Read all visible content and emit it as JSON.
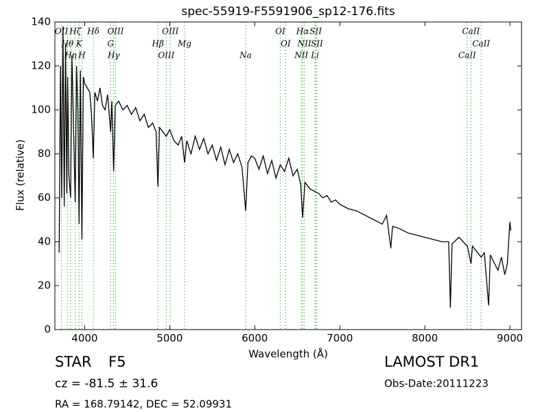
{
  "chart_data": {
    "type": "line",
    "title": "spec-55919-F5591906_sp12-176.fits",
    "xlabel": "Wavelength (Å)",
    "ylabel": "Flux (relative)",
    "color": "#000000",
    "line_color": "#55bb55",
    "xlim": [
      3650,
      9137
    ],
    "ylim": [
      0,
      140
    ],
    "xticks": [
      4000,
      5000,
      6000,
      7000,
      8000,
      9000
    ],
    "yticks": [
      0,
      20,
      40,
      60,
      80,
      100,
      120,
      140
    ],
    "x": [
      3700,
      3715,
      3730,
      3745,
      3760,
      3775,
      3790,
      3800,
      3815,
      3835,
      3850,
      3870,
      3889,
      3905,
      3920,
      3934,
      3950,
      3968,
      3985,
      4000,
      4030,
      4060,
      4080,
      4102,
      4120,
      4150,
      4180,
      4210,
      4240,
      4270,
      4305,
      4320,
      4341,
      4360,
      4400,
      4450,
      4500,
      4550,
      4600,
      4650,
      4700,
      4750,
      4800,
      4840,
      4861,
      4880,
      4920,
      4960,
      5000,
      5050,
      5100,
      5140,
      5175,
      5200,
      5250,
      5300,
      5350,
      5400,
      5450,
      5500,
      5550,
      5600,
      5650,
      5700,
      5750,
      5800,
      5850,
      5893,
      5920,
      5960,
      6000,
      6050,
      6100,
      6150,
      6200,
      6250,
      6300,
      6350,
      6400,
      6450,
      6500,
      6540,
      6563,
      6590,
      6650,
      6700,
      6750,
      6800,
      6850,
      6900,
      6950,
      7000,
      7100,
      7200,
      7300,
      7400,
      7500,
      7550,
      7600,
      7620,
      7700,
      7800,
      7900,
      8000,
      8100,
      8200,
      8280,
      8300,
      8320,
      8400,
      8450,
      8500,
      8542,
      8560,
      8600,
      8662,
      8700,
      8750,
      8770,
      8820,
      8860,
      8900,
      8940,
      8970,
      9000,
      9010
    ],
    "values": [
      35,
      120,
      60,
      138,
      56,
      130,
      62,
      115,
      70,
      60,
      125,
      90,
      58,
      120,
      100,
      48,
      118,
      41,
      115,
      112,
      110,
      108,
      98,
      78,
      108,
      104,
      110,
      102,
      100,
      107,
      90,
      104,
      72,
      102,
      104,
      100,
      102,
      98,
      101,
      95,
      98,
      92,
      94,
      90,
      65,
      92,
      90,
      88,
      91,
      86,
      84,
      88,
      76,
      86,
      80,
      88,
      82,
      87,
      80,
      84,
      77,
      83,
      75,
      82,
      76,
      80,
      74,
      54,
      76,
      79,
      78,
      73,
      79,
      71,
      77,
      69,
      75,
      72,
      78,
      70,
      73,
      66,
      51,
      67,
      64,
      63,
      62,
      60,
      61,
      58,
      59,
      57,
      55,
      54,
      52,
      50,
      48,
      52,
      37,
      47,
      46,
      44,
      43,
      42,
      41,
      40,
      40,
      10,
      39,
      42,
      40,
      38,
      30,
      38,
      36,
      33,
      35,
      11,
      34,
      30,
      27,
      33,
      25,
      30,
      49,
      45
    ],
    "lines": [
      {
        "name": "OII",
        "wavelength": 3727
      },
      {
        "name": "Hθ",
        "wavelength": 3798
      },
      {
        "name": "Hη",
        "wavelength": 3835
      },
      {
        "name": "Hζ",
        "wavelength": 3889
      },
      {
        "name": "K",
        "wavelength": 3934
      },
      {
        "name": "H",
        "wavelength": 3968
      },
      {
        "name": "Hδ",
        "wavelength": 4102
      },
      {
        "name": "G",
        "wavelength": 4305
      },
      {
        "name": "Hγ",
        "wavelength": 4341
      },
      {
        "name": "OIII",
        "wavelength": 4363
      },
      {
        "name": "Hβ",
        "wavelength": 4861
      },
      {
        "name": "OIII",
        "wavelength": 4959
      },
      {
        "name": "OIII",
        "wavelength": 5007
      },
      {
        "name": "Mg",
        "wavelength": 5175
      },
      {
        "name": "Na",
        "wavelength": 5893
      },
      {
        "name": "OI",
        "wavelength": 6300
      },
      {
        "name": "OI",
        "wavelength": 6364
      },
      {
        "name": "NII",
        "wavelength": 6548
      },
      {
        "name": "Hα",
        "wavelength": 6563
      },
      {
        "name": "NII",
        "wavelength": 6583
      },
      {
        "name": "Li",
        "wavelength": 6708
      },
      {
        "name": "SII",
        "wavelength": 6716
      },
      {
        "name": "SII",
        "wavelength": 6731
      },
      {
        "name": "CaII",
        "wavelength": 8498
      },
      {
        "name": "CaII",
        "wavelength": 8542
      },
      {
        "name": "CaII",
        "wavelength": 8662
      }
    ],
    "object_class": "STAR",
    "subclass": "F5",
    "redshift": "cz = -81.5 ± 31.6",
    "coords": "RA = 168.79142, DEC = 52.09931",
    "survey": "LAMOST DR1",
    "obs_date": "Obs-Date:20111223"
  }
}
